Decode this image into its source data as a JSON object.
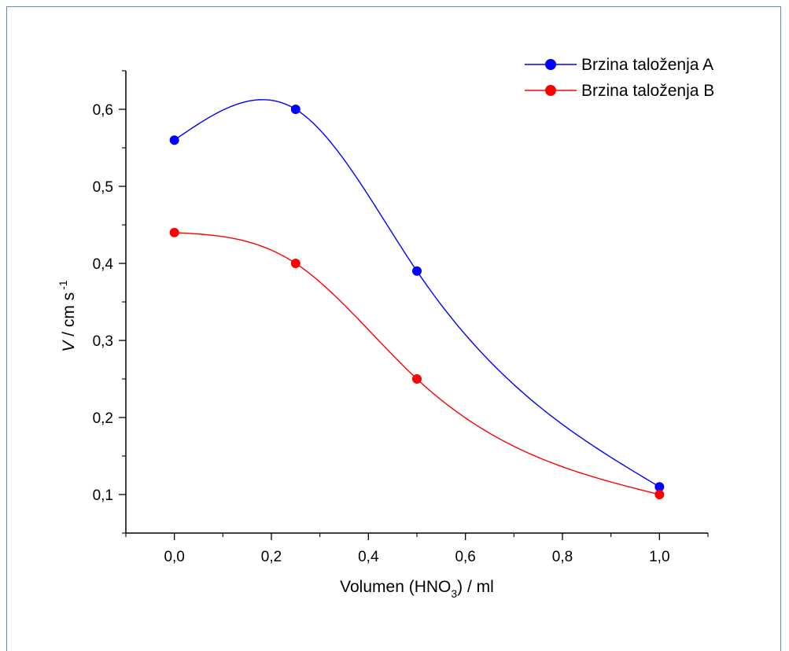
{
  "chart_data": {
    "type": "line",
    "title": "",
    "xlabel": {
      "pre": "Volumen (HNO",
      "sub": "3",
      "post": ") / ml"
    },
    "ylabel": {
      "italic": "V",
      "mid": " / cm s",
      "sup": "-1"
    },
    "xlim": [
      -0.1,
      1.1
    ],
    "ylim": [
      0.05,
      0.65
    ],
    "x_ticks": [
      0.0,
      0.2,
      0.4,
      0.6,
      0.8,
      1.0
    ],
    "x_tick_labels": [
      "0,0",
      "0,2",
      "0,4",
      "0,6",
      "0,8",
      "1,0"
    ],
    "y_ticks": [
      0.1,
      0.2,
      0.3,
      0.4,
      0.5,
      0.6
    ],
    "y_tick_labels": [
      "0,1",
      "0,2",
      "0,3",
      "0,4",
      "0,5",
      "0,6"
    ],
    "grid": false,
    "legend_position": "top-right",
    "series": [
      {
        "name": "Brzina taloženja A",
        "color": "#0000ff",
        "x": [
          0.0,
          0.25,
          0.5,
          1.0
        ],
        "y": [
          0.56,
          0.6,
          0.39,
          0.11
        ]
      },
      {
        "name": "Brzina taloženja B",
        "color": "#ff0000",
        "x": [
          0.0,
          0.25,
          0.5,
          1.0
        ],
        "y": [
          0.44,
          0.4,
          0.25,
          0.1
        ]
      }
    ]
  }
}
